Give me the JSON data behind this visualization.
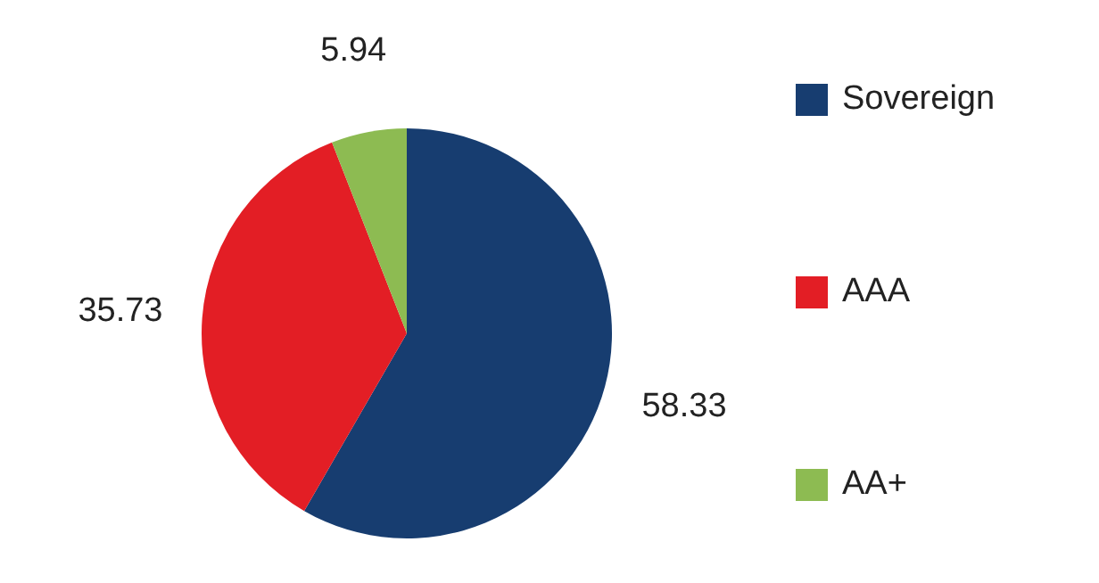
{
  "chart_data": {
    "type": "pie",
    "categories": [
      "Sovereign",
      "AAA",
      "AA+"
    ],
    "values": [
      58.33,
      35.73,
      5.94
    ],
    "colors": [
      "#173d70",
      "#e31e25",
      "#8dbb52"
    ],
    "data_labels": true,
    "legend": "right"
  }
}
